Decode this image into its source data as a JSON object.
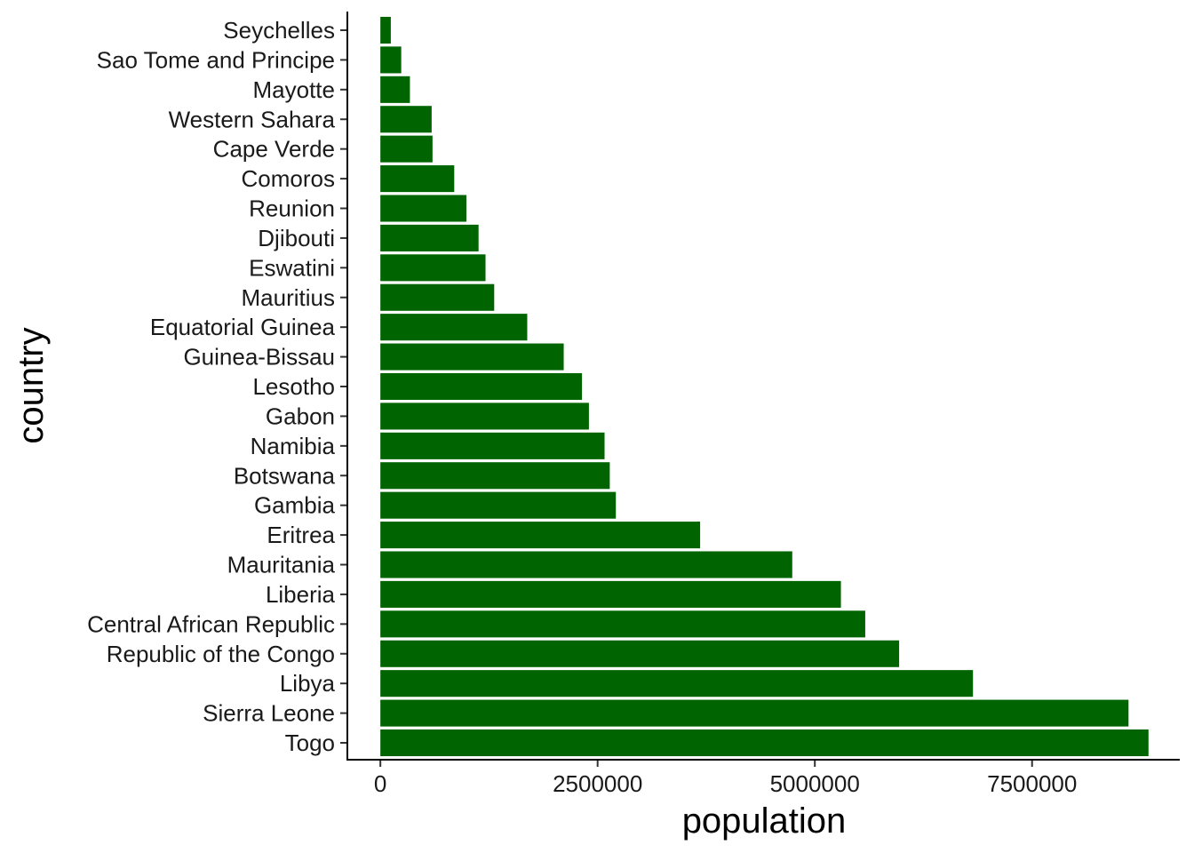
{
  "chart_data": {
    "type": "bar",
    "orientation": "horizontal",
    "xlabel": "population",
    "ylabel": "country",
    "xlim": [
      -380000,
      9200000
    ],
    "xticks": [
      0,
      2500000,
      5000000,
      7500000
    ],
    "xtick_labels": [
      "0",
      "2500000",
      "5000000",
      "7500000"
    ],
    "grid": false,
    "bar_color": "#006400",
    "categories": [
      "Seychelles",
      "Sao Tome and Principe",
      "Mayotte",
      "Western Sahara",
      "Cape Verde",
      "Comoros",
      "Reunion",
      "Djibouti",
      "Eswatini",
      "Mauritius",
      "Equatorial Guinea",
      "Guinea-Bissau",
      "Lesotho",
      "Gabon",
      "Namibia",
      "Botswana",
      "Gambia",
      "Eritrea",
      "Mauritania",
      "Liberia",
      "Central African Republic",
      "Republic of the Congo",
      "Libya",
      "Sierra Leone",
      "Togo"
    ],
    "values": [
      120000,
      240000,
      340000,
      590000,
      600000,
      850000,
      990000,
      1130000,
      1210000,
      1310000,
      1690000,
      2110000,
      2320000,
      2400000,
      2580000,
      2640000,
      2710000,
      3680000,
      4740000,
      5300000,
      5580000,
      5970000,
      6820000,
      8610000,
      8840000
    ]
  }
}
